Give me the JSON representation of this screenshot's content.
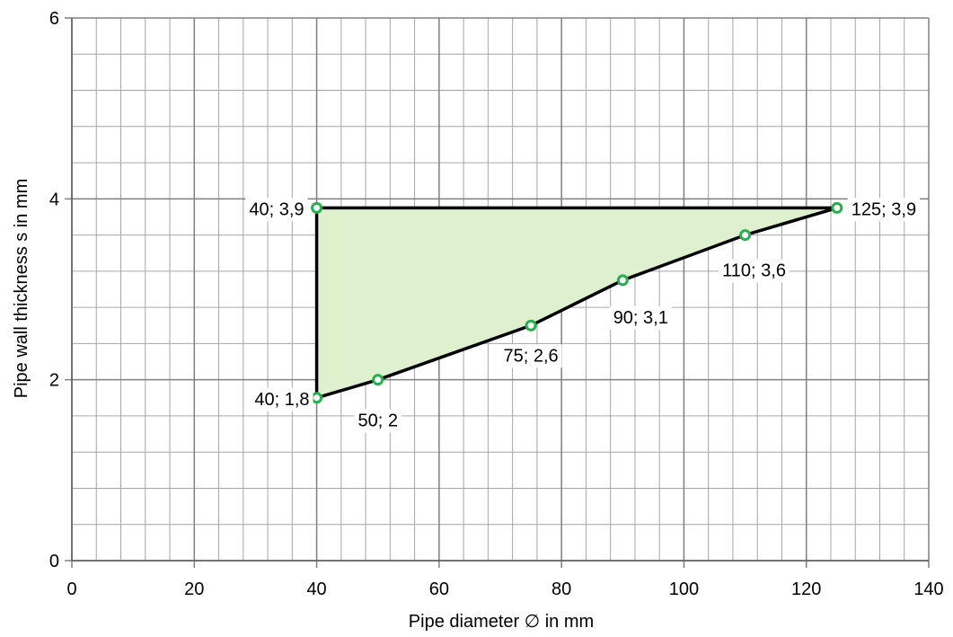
{
  "chart_data": {
    "type": "area",
    "xlabel": "Pipe diameter ∅ in mm",
    "ylabel": "Pipe wall thickness s in mm",
    "xlim": [
      0,
      140
    ],
    "ylim": [
      0,
      6
    ],
    "x_ticks": [
      0,
      20,
      40,
      60,
      80,
      100,
      120,
      140
    ],
    "y_ticks": [
      0,
      2,
      4,
      6
    ],
    "x_tick_labels": [
      "0",
      "20",
      "40",
      "60",
      "80",
      "100",
      "120",
      "140"
    ],
    "y_tick_labels": [
      "0",
      "2",
      "4",
      "6"
    ],
    "grid": true,
    "minor_grid_x_step": 4,
    "minor_grid_y_step": 0.4,
    "series": [
      {
        "points": [
          {
            "x": 40,
            "y": 1.8,
            "label": "40; 1,8"
          },
          {
            "x": 50,
            "y": 2,
            "label": "50; 2"
          },
          {
            "x": 75,
            "y": 2.6,
            "label": "75; 2,6"
          },
          {
            "x": 90,
            "y": 3.1,
            "label": "90; 3,1"
          },
          {
            "x": 110,
            "y": 3.6,
            "label": "110; 3,6"
          },
          {
            "x": 125,
            "y": 3.9,
            "label": "125; 3,9"
          },
          {
            "x": 40,
            "y": 3.9,
            "label": "40; 3,9"
          }
        ]
      }
    ],
    "colors": {
      "fill": "#dff0cf",
      "line": "#000000",
      "marker_stroke": "#22b14c",
      "marker_fill": "#ffffff",
      "grid": "#a6a6a6",
      "major_grid": "#808080"
    }
  }
}
